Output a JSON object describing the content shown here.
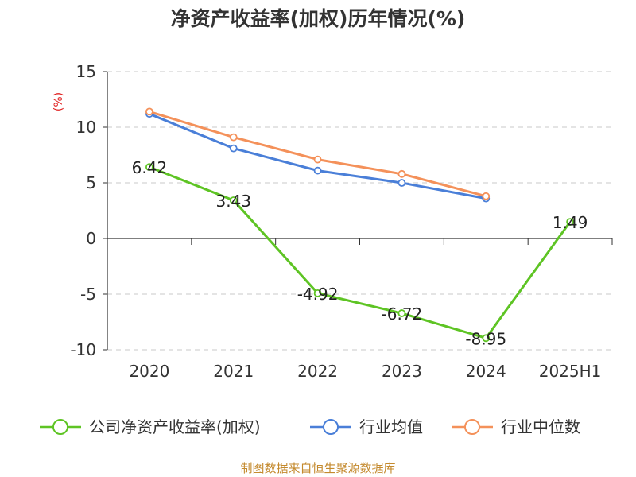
{
  "chart_data": {
    "type": "line",
    "title": "净资产收益率(加权)历年情况(%)",
    "ylabel": "(%)",
    "categories": [
      "2020",
      "2021",
      "2022",
      "2023",
      "2024",
      "2025H1"
    ],
    "yticks": [
      "15",
      "10",
      "5",
      "0",
      "-5",
      "-10"
    ],
    "ylim": [
      -10,
      15
    ],
    "grid": true,
    "legend_position": "bottom",
    "series": [
      {
        "name": "公司净资产收益率(加权)",
        "color": "#5ec424",
        "values": [
          6.42,
          3.43,
          -4.92,
          -6.72,
          -8.95,
          1.49
        ],
        "labels": [
          "6.42",
          "3.43",
          "-4.92",
          "-6.72",
          "-8.95",
          "1.49"
        ]
      },
      {
        "name": "行业均值",
        "color": "#4a7fd8",
        "values": [
          11.2,
          8.1,
          6.1,
          5.0,
          3.6,
          null
        ]
      },
      {
        "name": "行业中位数",
        "color": "#f4915a",
        "values": [
          11.4,
          9.1,
          7.1,
          5.8,
          3.8,
          null
        ]
      }
    ]
  },
  "source": "制图数据来自恒生聚源数据库",
  "colors": {
    "axis": "#333333",
    "grid": "#c8c8c8",
    "ylabel": "#e02020",
    "source": "#c48a2e"
  }
}
